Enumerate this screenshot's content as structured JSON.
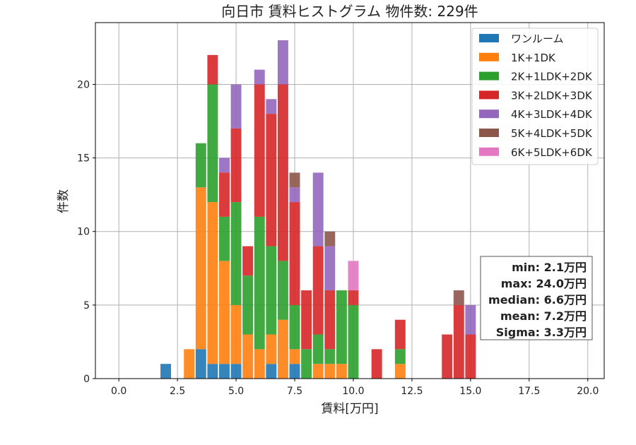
{
  "chart_data": {
    "type": "bar",
    "stacked": true,
    "title": "向日市 賃料ヒストグラム  物件数: 229件",
    "xlabel": "賃料[万円]",
    "ylabel": "件数",
    "xlim": [
      -1.0,
      20.7
    ],
    "ylim": [
      0,
      24.2
    ],
    "xticks": [
      0.0,
      2.5,
      5.0,
      7.5,
      10.0,
      12.5,
      15.0,
      17.5,
      20.0
    ],
    "xtick_labels": [
      "0.0",
      "2.5",
      "5.0",
      "7.5",
      "10.0",
      "12.5",
      "15.0",
      "17.5",
      "20.0"
    ],
    "yticks": [
      0,
      5,
      10,
      15,
      20
    ],
    "ytick_labels": [
      "0",
      "5",
      "10",
      "15",
      "20"
    ],
    "grid": true,
    "legend_position": "top-right",
    "bin_width": 0.5,
    "x": [
      2.0,
      3.0,
      3.5,
      4.0,
      4.5,
      5.0,
      5.5,
      6.0,
      6.5,
      7.0,
      7.5,
      8.0,
      8.5,
      9.0,
      9.5,
      10.0,
      11.0,
      12.0,
      14.0,
      14.5,
      15.0
    ],
    "series": [
      {
        "name": "ワンルーム",
        "color": "#1f77b4",
        "values": [
          1,
          0,
          2,
          1,
          1,
          1,
          0,
          0,
          1,
          0,
          1,
          0,
          0,
          0,
          0,
          0,
          0,
          0,
          0,
          0,
          0
        ]
      },
      {
        "name": "1K+1DK",
        "color": "#ff7f0e",
        "values": [
          0,
          2,
          11,
          11,
          7,
          4,
          3,
          2,
          2,
          4,
          1,
          0,
          1,
          1,
          1,
          0,
          0,
          1,
          0,
          0,
          0
        ]
      },
      {
        "name": "2K+1LDK+2DK",
        "color": "#2ca02c",
        "values": [
          0,
          0,
          3,
          8,
          3,
          7,
          4,
          9,
          6,
          4,
          3,
          2,
          2,
          1,
          5,
          5,
          0,
          1,
          0,
          0,
          0
        ]
      },
      {
        "name": "3K+2LDK+3DK",
        "color": "#d62728",
        "values": [
          0,
          0,
          0,
          2,
          3,
          5,
          2,
          9,
          9,
          12,
          7,
          4,
          6,
          4,
          0,
          1,
          2,
          2,
          3,
          5,
          3
        ]
      },
      {
        "name": "4K+3LDK+4DK",
        "color": "#9467bd",
        "values": [
          0,
          0,
          0,
          0,
          1,
          3,
          0,
          1,
          1,
          3,
          1,
          0,
          5,
          3,
          0,
          0,
          0,
          0,
          0,
          0,
          2
        ]
      },
      {
        "name": "5K+4LDK+5DK",
        "color": "#8c564b",
        "values": [
          0,
          0,
          0,
          0,
          0,
          0,
          0,
          0,
          0,
          0,
          1,
          0,
          0,
          1,
          0,
          0,
          0,
          0,
          0,
          1,
          0
        ]
      },
      {
        "name": "6K+5LDK+6DK",
        "color": "#e377c2",
        "values": [
          0,
          0,
          0,
          0,
          0,
          0,
          0,
          0,
          0,
          0,
          0,
          0,
          0,
          0,
          0,
          2,
          0,
          0,
          0,
          0,
          0
        ]
      }
    ],
    "stats": [
      "min: 2.1万円",
      "max: 24.0万円",
      "median: 6.6万円",
      "mean: 7.2万円",
      "Sigma: 3.3万円"
    ]
  }
}
